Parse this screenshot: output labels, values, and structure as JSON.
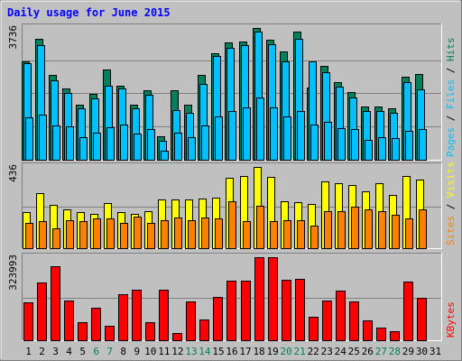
{
  "colors": {
    "background": "#c0c0c0",
    "title": "#0000ff",
    "weekday_label": "#000000",
    "weekend_label": "#00805c",
    "hits": "#00805c",
    "files": "#00c0ff",
    "pages": "#00c0ff",
    "visits": "#ffff00",
    "sites": "#ff8000",
    "kbytes": "#ff0000"
  },
  "chart_data": {
    "type": "bar",
    "title": "Daily usage for June 2015",
    "categories": [
      "1",
      "2",
      "3",
      "4",
      "5",
      "6",
      "7",
      "8",
      "9",
      "10",
      "11",
      "12",
      "13",
      "14",
      "15",
      "16",
      "17",
      "18",
      "19",
      "20",
      "21",
      "22",
      "23",
      "24",
      "25",
      "26",
      "27",
      "28",
      "29",
      "30",
      "31"
    ],
    "weekend_days": [
      "6",
      "7",
      "13",
      "14",
      "20",
      "21",
      "27",
      "28"
    ],
    "panels": [
      {
        "name": "hits-files",
        "max_label": "3736",
        "ylim": [
          0,
          3736
        ],
        "legend": [
          "Pages",
          "Files",
          "Hits"
        ],
        "series": [
          {
            "name": "Hits",
            "values": [
              2790,
              3420,
              2400,
              2030,
              1570,
              1860,
              2560,
              2110,
              1560,
              1960,
              660,
              1960,
              1560,
              2400,
              3020,
              3330,
              3350,
              3736,
              3400,
              3060,
              3630,
              2040,
              2670,
              2210,
              1920,
              1510,
              1510,
              1470,
              2350,
              2420,
              0
            ]
          },
          {
            "name": "Files",
            "values": [
              2730,
              3260,
              2260,
              1900,
              1450,
              1730,
              2090,
              2020,
              1470,
              1850,
              530,
              1400,
              1340,
              2140,
              2930,
              3170,
              3240,
              3636,
              3280,
              2800,
              3440,
              2780,
              2490,
              2070,
              1760,
              1370,
              1370,
              1340,
              2200,
              1990,
              0
            ]
          },
          {
            "name": "Pages",
            "values": [
              1200,
              1280,
              980,
              950,
              640,
              780,
              930,
              1000,
              730,
              860,
              250,
              780,
              640,
              970,
              1230,
              1380,
              1480,
              1760,
              1480,
              1220,
              1380,
              1010,
              1080,
              890,
              860,
              560,
              640,
              610,
              830,
              870,
              0
            ]
          }
        ]
      },
      {
        "name": "visits-sites",
        "max_label": "436",
        "ylim": [
          0,
          436
        ],
        "legend": [
          "Sites",
          "Visits"
        ],
        "series": [
          {
            "name": "Visits",
            "values": [
              196,
              296,
              232,
              210,
              196,
              186,
              242,
              196,
              186,
              200,
              264,
              264,
              264,
              266,
              270,
              380,
              388,
              436,
              384,
              254,
              246,
              238,
              360,
              348,
              340,
              306,
              350,
              286,
              388,
              370,
              0
            ]
          },
          {
            "name": "Sites",
            "values": [
              136,
              146,
              108,
              150,
              144,
              158,
              162,
              138,
              170,
              138,
              152,
              164,
              150,
              164,
              160,
              254,
              146,
              226,
              146,
              150,
              150,
              122,
              198,
              198,
              224,
              206,
              200,
              178,
              158,
              206,
              0
            ]
          }
        ]
      },
      {
        "name": "kbytes",
        "max_label": "323993",
        "ylim": [
          0,
          323993
        ],
        "legend": [
          "KBytes"
        ],
        "series": [
          {
            "name": "KBytes",
            "values": [
              149000,
              227000,
              290000,
              154000,
              70000,
              126000,
              57000,
              180000,
              196000,
              71000,
              196000,
              28000,
              153000,
              80000,
              169000,
              232000,
              232000,
              323993,
              323993,
              237000,
              240000,
              91000,
              155000,
              193000,
              152000,
              76000,
              48000,
              36000,
              229000,
              165000,
              0
            ]
          }
        ]
      }
    ]
  }
}
